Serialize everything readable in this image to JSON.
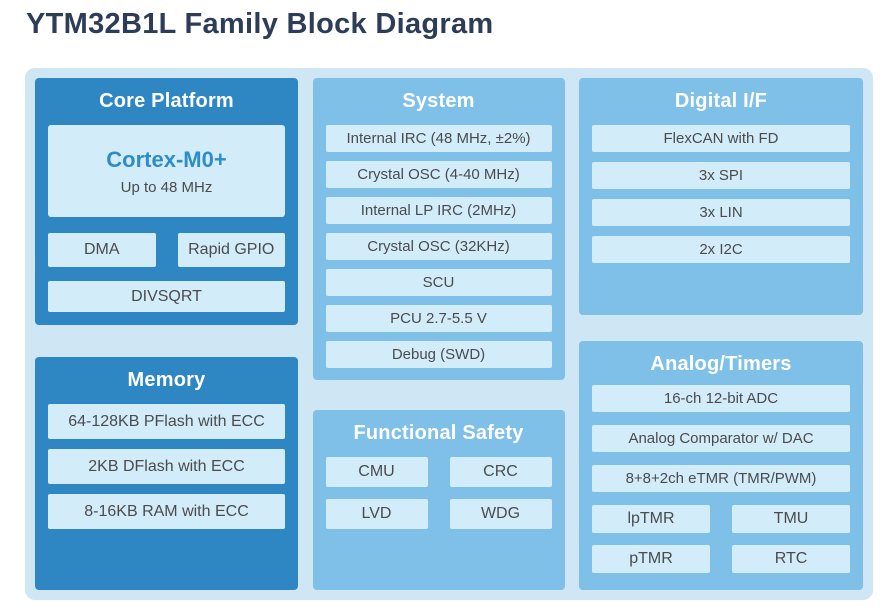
{
  "title": "YTM32B1L Family Block Diagram",
  "colors": {
    "title_text": "#2d3c57",
    "container_bg": "#cfe6f4",
    "section_dark_bg": "#2e86c3",
    "section_light_bg": "#7fc0e9",
    "item_bg": "#d3ecf9",
    "item_text": "#4b4b4d",
    "header_text": "#ffffff",
    "cortex_text": "#2e8cc7"
  },
  "sections": {
    "core_platform": {
      "title": "Core Platform",
      "cortex": {
        "name": "Cortex-M0+",
        "subtitle": "Up to 48 MHz"
      },
      "row_items": [
        "DMA",
        "Rapid GPIO"
      ],
      "wide_item": "DIVSQRT"
    },
    "memory": {
      "title": "Memory",
      "items": [
        "64-128KB PFlash with ECC",
        "2KB DFlash with ECC",
        "8-16KB RAM with ECC"
      ]
    },
    "system": {
      "title": "System",
      "items": [
        "Internal IRC (48 MHz, ±2%)",
        "Crystal OSC (4-40 MHz)",
        "Internal LP IRC (2MHz)",
        "Crystal OSC (32KHz)",
        "SCU",
        "PCU 2.7-5.5 V",
        "Debug (SWD)"
      ]
    },
    "functional_safety": {
      "title": "Functional Safety",
      "grid_items": [
        "CMU",
        "CRC",
        "LVD",
        "WDG"
      ]
    },
    "digital_if": {
      "title": "Digital I/F",
      "items": [
        "FlexCAN with FD",
        "3x SPI",
        "3x LIN",
        "2x I2C"
      ]
    },
    "analog_timers": {
      "title": "Analog/Timers",
      "items": [
        "16-ch 12-bit ADC",
        "Analog Comparator w/ DAC",
        "8+8+2ch eTMR (TMR/PWM)"
      ],
      "grid_items": [
        "lpTMR",
        "TMU",
        "pTMR",
        "RTC"
      ]
    }
  }
}
